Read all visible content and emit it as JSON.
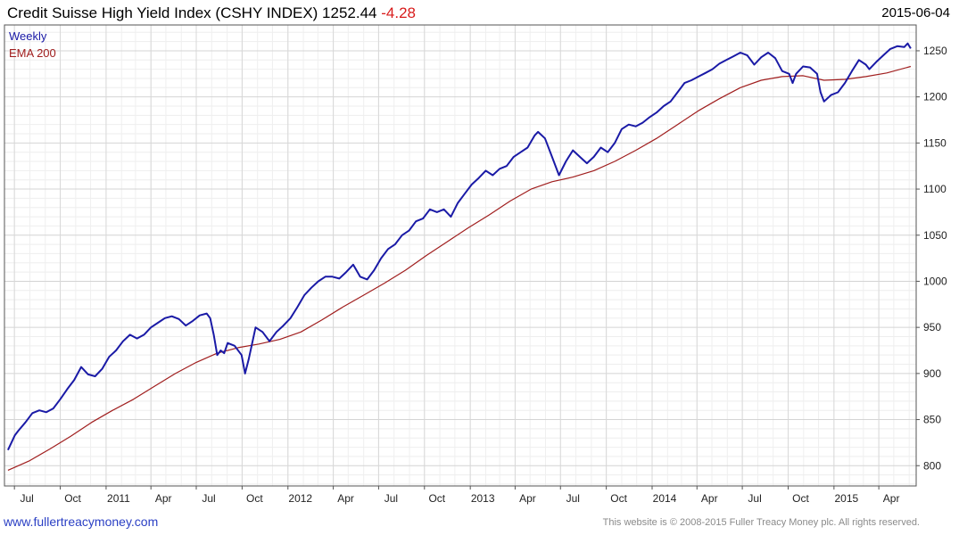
{
  "header": {
    "title": "Credit Suisse High Yield Index (CSHY INDEX) 1252.44",
    "change": "-4.28",
    "date": "2015-06-04"
  },
  "footer": {
    "site": "www.fullertreacymoney.com",
    "copyright": "This website is © 2008-2015 Fuller Treacy Money plc. All rights reserved."
  },
  "colors": {
    "series_main": "#1a1aa6",
    "series_ema": "#a01e1e",
    "change_text": "#d81b1b",
    "grid": "#dcdcdc"
  },
  "chart_data": {
    "type": "line",
    "frequency_label": "Weekly",
    "ylim": [
      778,
      1278
    ],
    "xlim": [
      "2010-06-11",
      "2015-06-15"
    ],
    "y_ticks": [
      800,
      850,
      900,
      950,
      1000,
      1050,
      1100,
      1150,
      1200,
      1250
    ],
    "x_ticks": [
      {
        "label": "Jul",
        "date": "2010-07-01"
      },
      {
        "label": "Oct",
        "date": "2010-10-01"
      },
      {
        "label": "2011",
        "date": "2011-01-01"
      },
      {
        "label": "Apr",
        "date": "2011-04-01"
      },
      {
        "label": "Jul",
        "date": "2011-07-01"
      },
      {
        "label": "Oct",
        "date": "2011-10-01"
      },
      {
        "label": "2012",
        "date": "2012-01-01"
      },
      {
        "label": "Apr",
        "date": "2012-04-01"
      },
      {
        "label": "Jul",
        "date": "2012-07-01"
      },
      {
        "label": "Oct",
        "date": "2012-10-01"
      },
      {
        "label": "2013",
        "date": "2013-01-01"
      },
      {
        "label": "Apr",
        "date": "2013-04-01"
      },
      {
        "label": "Jul",
        "date": "2013-07-01"
      },
      {
        "label": "Oct",
        "date": "2013-10-01"
      },
      {
        "label": "2014",
        "date": "2014-01-01"
      },
      {
        "label": "Apr",
        "date": "2014-04-01"
      },
      {
        "label": "Jul",
        "date": "2014-07-01"
      },
      {
        "label": "Oct",
        "date": "2014-10-01"
      },
      {
        "label": "2015",
        "date": "2015-01-01"
      },
      {
        "label": "Apr",
        "date": "2015-04-01"
      }
    ],
    "series": [
      {
        "name": "Weekly",
        "color": "#1a1aa6",
        "points": [
          [
            "2010-06-18",
            817
          ],
          [
            "2010-06-25",
            825
          ],
          [
            "2010-07-02",
            833
          ],
          [
            "2010-07-09",
            838
          ],
          [
            "2010-07-23",
            847
          ],
          [
            "2010-08-06",
            857
          ],
          [
            "2010-08-20",
            860
          ],
          [
            "2010-09-03",
            858
          ],
          [
            "2010-09-17",
            862
          ],
          [
            "2010-10-01",
            872
          ],
          [
            "2010-10-15",
            883
          ],
          [
            "2010-10-29",
            893
          ],
          [
            "2010-11-12",
            907
          ],
          [
            "2010-11-26",
            899
          ],
          [
            "2010-12-10",
            897
          ],
          [
            "2010-12-24",
            905
          ],
          [
            "2011-01-07",
            918
          ],
          [
            "2011-01-21",
            925
          ],
          [
            "2011-02-04",
            935
          ],
          [
            "2011-02-18",
            942
          ],
          [
            "2011-03-04",
            938
          ],
          [
            "2011-03-18",
            942
          ],
          [
            "2011-04-01",
            950
          ],
          [
            "2011-04-15",
            955
          ],
          [
            "2011-04-29",
            960
          ],
          [
            "2011-05-13",
            962
          ],
          [
            "2011-05-27",
            959
          ],
          [
            "2011-06-10",
            952
          ],
          [
            "2011-06-24",
            957
          ],
          [
            "2011-07-08",
            963
          ],
          [
            "2011-07-22",
            965
          ],
          [
            "2011-07-29",
            960
          ],
          [
            "2011-08-05",
            942
          ],
          [
            "2011-08-12",
            920
          ],
          [
            "2011-08-19",
            925
          ],
          [
            "2011-08-26",
            922
          ],
          [
            "2011-09-02",
            933
          ],
          [
            "2011-09-16",
            930
          ],
          [
            "2011-09-30",
            920
          ],
          [
            "2011-10-07",
            900
          ],
          [
            "2011-10-14",
            915
          ],
          [
            "2011-10-28",
            950
          ],
          [
            "2011-11-11",
            945
          ],
          [
            "2011-11-25",
            935
          ],
          [
            "2011-12-09",
            945
          ],
          [
            "2011-12-23",
            952
          ],
          [
            "2012-01-06",
            960
          ],
          [
            "2012-01-20",
            972
          ],
          [
            "2012-02-03",
            985
          ],
          [
            "2012-02-17",
            993
          ],
          [
            "2012-03-02",
            1000
          ],
          [
            "2012-03-16",
            1005
          ],
          [
            "2012-03-30",
            1005
          ],
          [
            "2012-04-13",
            1003
          ],
          [
            "2012-04-27",
            1010
          ],
          [
            "2012-05-11",
            1018
          ],
          [
            "2012-05-25",
            1005
          ],
          [
            "2012-06-08",
            1002
          ],
          [
            "2012-06-22",
            1012
          ],
          [
            "2012-07-06",
            1025
          ],
          [
            "2012-07-20",
            1035
          ],
          [
            "2012-08-03",
            1040
          ],
          [
            "2012-08-17",
            1050
          ],
          [
            "2012-08-31",
            1055
          ],
          [
            "2012-09-14",
            1065
          ],
          [
            "2012-09-28",
            1068
          ],
          [
            "2012-10-12",
            1078
          ],
          [
            "2012-10-26",
            1075
          ],
          [
            "2012-11-09",
            1078
          ],
          [
            "2012-11-23",
            1070
          ],
          [
            "2012-12-07",
            1085
          ],
          [
            "2012-12-21",
            1095
          ],
          [
            "2013-01-04",
            1105
          ],
          [
            "2013-01-18",
            1112
          ],
          [
            "2013-02-01",
            1120
          ],
          [
            "2013-02-15",
            1115
          ],
          [
            "2013-03-01",
            1122
          ],
          [
            "2013-03-15",
            1125
          ],
          [
            "2013-03-29",
            1135
          ],
          [
            "2013-04-12",
            1140
          ],
          [
            "2013-04-26",
            1145
          ],
          [
            "2013-05-10",
            1158
          ],
          [
            "2013-05-17",
            1162
          ],
          [
            "2013-05-31",
            1155
          ],
          [
            "2013-06-14",
            1135
          ],
          [
            "2013-06-28",
            1115
          ],
          [
            "2013-07-12",
            1130
          ],
          [
            "2013-07-26",
            1142
          ],
          [
            "2013-08-09",
            1135
          ],
          [
            "2013-08-23",
            1128
          ],
          [
            "2013-09-06",
            1135
          ],
          [
            "2013-09-20",
            1145
          ],
          [
            "2013-10-04",
            1140
          ],
          [
            "2013-10-18",
            1150
          ],
          [
            "2013-11-01",
            1165
          ],
          [
            "2013-11-15",
            1170
          ],
          [
            "2013-11-29",
            1168
          ],
          [
            "2013-12-13",
            1172
          ],
          [
            "2013-12-27",
            1178
          ],
          [
            "2014-01-10",
            1183
          ],
          [
            "2014-01-24",
            1190
          ],
          [
            "2014-02-07",
            1195
          ],
          [
            "2014-02-21",
            1205
          ],
          [
            "2014-03-07",
            1215
          ],
          [
            "2014-03-21",
            1218
          ],
          [
            "2014-04-04",
            1222
          ],
          [
            "2014-04-18",
            1226
          ],
          [
            "2014-05-02",
            1230
          ],
          [
            "2014-05-16",
            1236
          ],
          [
            "2014-05-30",
            1240
          ],
          [
            "2014-06-13",
            1244
          ],
          [
            "2014-06-27",
            1248
          ],
          [
            "2014-07-11",
            1245
          ],
          [
            "2014-07-25",
            1235
          ],
          [
            "2014-08-08",
            1243
          ],
          [
            "2014-08-22",
            1248
          ],
          [
            "2014-09-05",
            1242
          ],
          [
            "2014-09-19",
            1228
          ],
          [
            "2014-10-03",
            1225
          ],
          [
            "2014-10-10",
            1215
          ],
          [
            "2014-10-17",
            1225
          ],
          [
            "2014-10-31",
            1233
          ],
          [
            "2014-11-14",
            1232
          ],
          [
            "2014-11-28",
            1225
          ],
          [
            "2014-12-05",
            1205
          ],
          [
            "2014-12-12",
            1195
          ],
          [
            "2014-12-26",
            1202
          ],
          [
            "2015-01-09",
            1205
          ],
          [
            "2015-01-23",
            1215
          ],
          [
            "2015-02-06",
            1228
          ],
          [
            "2015-02-20",
            1240
          ],
          [
            "2015-03-06",
            1235
          ],
          [
            "2015-03-13",
            1230
          ],
          [
            "2015-03-27",
            1238
          ],
          [
            "2015-04-10",
            1245
          ],
          [
            "2015-04-24",
            1252
          ],
          [
            "2015-05-08",
            1255
          ],
          [
            "2015-05-22",
            1254
          ],
          [
            "2015-05-29",
            1258
          ],
          [
            "2015-06-04",
            1252.44
          ]
        ]
      },
      {
        "name": "EMA 200",
        "color": "#a01e1e",
        "points": [
          [
            "2010-06-18",
            795
          ],
          [
            "2010-07-30",
            805
          ],
          [
            "2010-09-10",
            818
          ],
          [
            "2010-10-22",
            832
          ],
          [
            "2010-12-03",
            847
          ],
          [
            "2011-01-14",
            860
          ],
          [
            "2011-02-25",
            872
          ],
          [
            "2011-04-08",
            886
          ],
          [
            "2011-05-20",
            900
          ],
          [
            "2011-07-01",
            912
          ],
          [
            "2011-08-12",
            922
          ],
          [
            "2011-09-23",
            928
          ],
          [
            "2011-11-04",
            932
          ],
          [
            "2011-12-16",
            937
          ],
          [
            "2012-01-27",
            945
          ],
          [
            "2012-03-09",
            958
          ],
          [
            "2012-04-20",
            972
          ],
          [
            "2012-06-01",
            985
          ],
          [
            "2012-07-13",
            998
          ],
          [
            "2012-08-24",
            1012
          ],
          [
            "2012-10-05",
            1028
          ],
          [
            "2012-11-16",
            1043
          ],
          [
            "2012-12-28",
            1058
          ],
          [
            "2013-02-08",
            1072
          ],
          [
            "2013-03-22",
            1087
          ],
          [
            "2013-05-03",
            1100
          ],
          [
            "2013-06-14",
            1108
          ],
          [
            "2013-07-26",
            1113
          ],
          [
            "2013-09-06",
            1120
          ],
          [
            "2013-10-18",
            1130
          ],
          [
            "2013-11-29",
            1142
          ],
          [
            "2014-01-10",
            1155
          ],
          [
            "2014-02-21",
            1170
          ],
          [
            "2014-04-04",
            1185
          ],
          [
            "2014-05-16",
            1198
          ],
          [
            "2014-06-27",
            1210
          ],
          [
            "2014-08-08",
            1218
          ],
          [
            "2014-09-19",
            1222
          ],
          [
            "2014-10-31",
            1223
          ],
          [
            "2014-12-12",
            1218
          ],
          [
            "2015-01-23",
            1219
          ],
          [
            "2015-03-06",
            1222
          ],
          [
            "2015-04-17",
            1226
          ],
          [
            "2015-06-04",
            1233
          ]
        ]
      }
    ],
    "legend": [
      "Weekly",
      "EMA 200"
    ],
    "legend_position": "top-left",
    "grid": true
  }
}
